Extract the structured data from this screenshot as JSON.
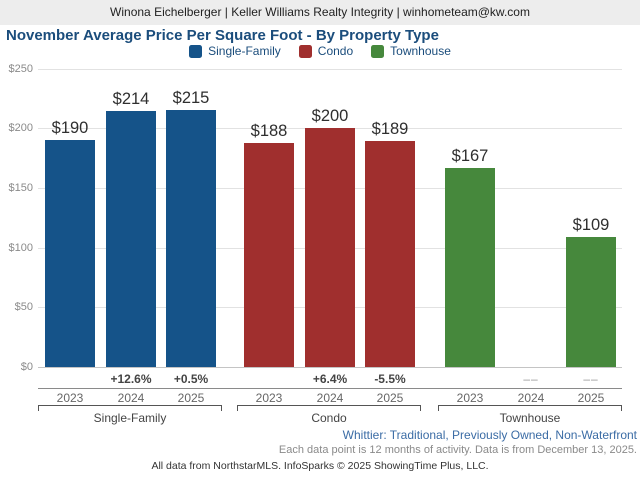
{
  "header": {
    "contact_line": "Winona Eichelberger | Keller Williams Realty Integrity | winhometeam@kw.com"
  },
  "title": "November Average Price Per Square Foot - By Property Type",
  "legend": [
    {
      "label": "Single-Family",
      "color": "#155389"
    },
    {
      "label": "Condo",
      "color": "#a02f2e"
    },
    {
      "label": "Townhouse",
      "color": "#46883c"
    }
  ],
  "chart_data": {
    "type": "bar",
    "title": "November Average Price Per Square Foot - By Property Type",
    "ylim": [
      0,
      250
    ],
    "ytick_labels": [
      "$0",
      "$50",
      "$100",
      "$150",
      "$200",
      "$250"
    ],
    "grid": true,
    "legend_position": "top",
    "categories": [
      "2023",
      "2024",
      "2025"
    ],
    "series": [
      {
        "name": "Single-Family",
        "color": "#155389",
        "values": [
          190,
          214,
          215
        ],
        "value_labels": [
          "$190",
          "$214",
          "$215"
        ],
        "pct_change": [
          null,
          "+12.6%",
          "+0.5%"
        ]
      },
      {
        "name": "Condo",
        "color": "#a02f2e",
        "values": [
          188,
          200,
          189
        ],
        "value_labels": [
          "$188",
          "$200",
          "$189"
        ],
        "pct_change": [
          null,
          "+6.4%",
          "-5.5%"
        ]
      },
      {
        "name": "Townhouse",
        "color": "#46883c",
        "values": [
          167,
          null,
          109
        ],
        "value_labels": [
          "$167",
          null,
          "$109"
        ],
        "pct_change": [
          null,
          "––",
          "––"
        ]
      }
    ]
  },
  "footer": {
    "filter_line": "Whittier: Traditional, Previously Owned, Non-Waterfront",
    "data_note": "Each data point is 12 months of activity. Data is from December 13, 2025.",
    "attribution": "All data from NorthstarMLS. InfoSparks © 2025 ShowingTime Plus, LLC."
  }
}
